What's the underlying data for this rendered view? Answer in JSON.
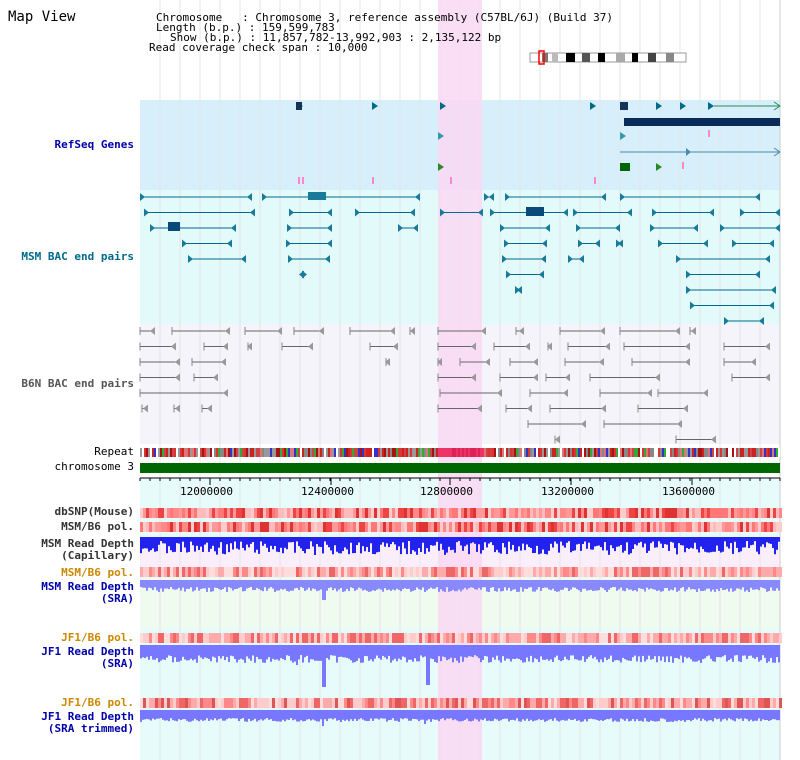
{
  "header": {
    "view_title": "Map View",
    "chromosome_line": "Chromosome   : Chromosome 3, reference assembly (C57BL/6J) (Build 37)",
    "length_line": "Length (b.p.) : 159,599,783",
    "show_line": "Show (b.p.) : 11,857,782-13,992,903 : 2,135,122 bp",
    "coverage_line": "Read coverage check span : 10,000"
  },
  "tracks": {
    "refseq_genes": "RefSeq Genes",
    "msm_bac": "MSM BAC end pairs",
    "b6n_bac": "B6N BAC end pairs",
    "repeat": "Repeat",
    "chromosome": "chromosome 3",
    "dbsnp": "dbSNP(Mouse)",
    "msm_b6_pol_1": "MSM/B6 pol.",
    "msm_read_depth_cap_1": "MSM Read Depth",
    "msm_read_depth_cap_2": "(Capillary)",
    "msm_b6_pol_2": "MSM/B6 pol.",
    "msm_read_depth_sra_1": "MSM Read Depth",
    "msm_read_depth_sra_2": "(SRA)",
    "jf1_b6_pol_1": "JF1/B6 pol.",
    "jf1_read_depth_sra_1": "JF1 Read Depth",
    "jf1_read_depth_sra_2": "(SRA)",
    "jf1_b6_pol_2": "JF1/B6 pol.",
    "jf1_read_depth_trim_1": "JF1 Read Depth",
    "jf1_read_depth_trim_2": "(SRA trimmed)"
  },
  "ruler": {
    "ticks": [
      "12000000",
      "12400000",
      "12800000",
      "13200000",
      "13600000"
    ]
  },
  "colors": {
    "highlight": "#f9d8f3",
    "refseq_bg": "#d6effa",
    "msm_bg": "#e2fafa",
    "b6n_bg": "#f4f4fa",
    "depth_blue": "#3333ff",
    "chrom_green": "#006600",
    "msm_label": "#006a8a",
    "b6n_label": "#555555",
    "pol_label_orange": "#cc8800",
    "sra_label_blue": "#0000aa"
  }
}
